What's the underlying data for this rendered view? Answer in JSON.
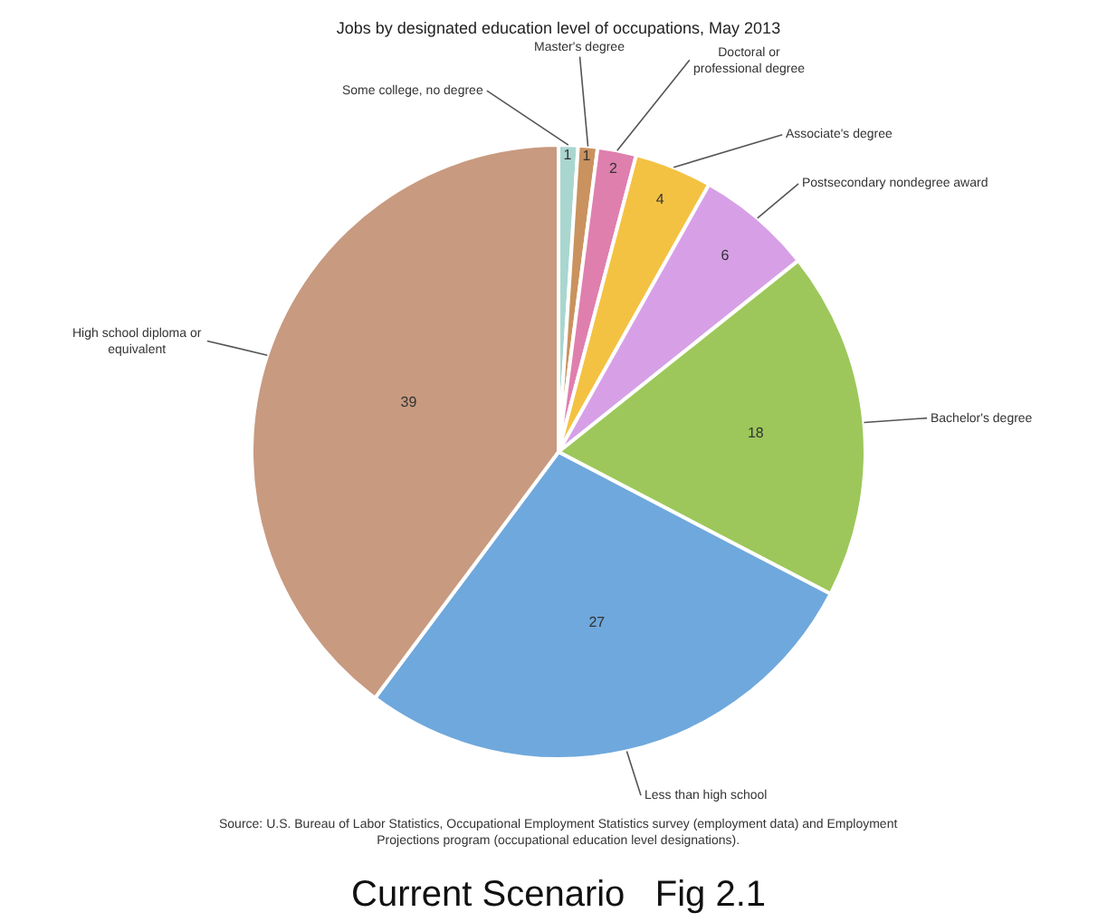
{
  "chart_data": {
    "type": "pie",
    "title": "Jobs by designated education level of occupations, May 2013",
    "categories": [
      "Some college, no degree",
      "Master's degree",
      "Doctoral or professional degree",
      "Associate's degree",
      "Postsecondary nondegree award",
      "Bachelor's degree",
      "Less than high school",
      "High school diploma or equivalent"
    ],
    "values": [
      1,
      1,
      2,
      4,
      6,
      18,
      27,
      39
    ],
    "colors": [
      "#a9d6cf",
      "#c9925e",
      "#df7fae",
      "#f4c242",
      "#d7a0e6",
      "#9dc75b",
      "#6fa8dc",
      "#c89a80"
    ],
    "data_labels": true,
    "legend": false,
    "annotations": [
      "Source: U.S. Bureau of Labor Statistics, Occupational Employment Statistics survey (employment data) and Employment Projections program (occupational education level designations).",
      "Current Scenario   Fig 2.1"
    ]
  }
}
